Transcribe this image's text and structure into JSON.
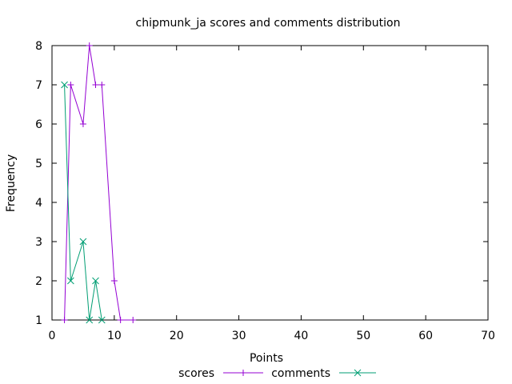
{
  "chart_data": {
    "type": "line",
    "title": "chipmunk_ja scores and comments distribution",
    "xlabel": "Points",
    "ylabel": "Frequency",
    "xlim": [
      0,
      70
    ],
    "ylim": [
      1,
      8
    ],
    "xticks": [
      0,
      10,
      20,
      30,
      40,
      50,
      60,
      70
    ],
    "yticks": [
      1,
      2,
      3,
      4,
      5,
      6,
      7,
      8
    ],
    "grid": false,
    "legend_position": "bottom-center",
    "series": [
      {
        "name": "scores",
        "color": "#9400d3",
        "marker": "plus",
        "x": [
          2,
          3,
          5,
          6,
          7,
          8,
          10,
          11,
          13
        ],
        "y": [
          1,
          7,
          6,
          8,
          7,
          7,
          2,
          1,
          1
        ]
      },
      {
        "name": "comments",
        "color": "#009e73",
        "marker": "cross",
        "x": [
          2,
          3,
          5,
          6,
          7,
          8
        ],
        "y": [
          7,
          2,
          3,
          1,
          2,
          1
        ]
      }
    ]
  }
}
